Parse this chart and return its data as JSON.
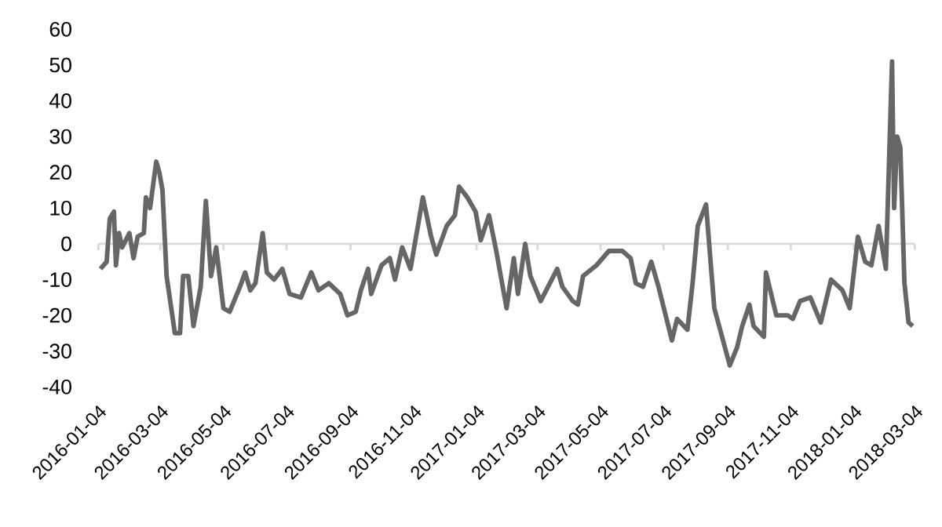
{
  "chart_data": {
    "type": "line",
    "x": [
      "2016-01-06",
      "2016-01-12",
      "2016-01-15",
      "2016-01-19",
      "2016-01-21",
      "2016-01-24",
      "2016-01-27",
      "2016-02-03",
      "2016-02-07",
      "2016-02-11",
      "2016-02-17",
      "2016-02-19",
      "2016-02-23",
      "2016-02-29",
      "2016-03-03",
      "2016-03-06",
      "2016-03-10",
      "2016-03-18",
      "2016-03-23",
      "2016-03-26",
      "2016-03-31",
      "2016-04-05",
      "2016-04-12",
      "2016-04-17",
      "2016-04-22",
      "2016-04-27",
      "2016-05-04",
      "2016-05-10",
      "2016-05-20",
      "2016-05-25",
      "2016-05-30",
      "2016-06-04",
      "2016-06-11",
      "2016-06-15",
      "2016-06-22",
      "2016-06-30",
      "2016-07-07",
      "2016-07-18",
      "2016-07-28",
      "2016-08-04",
      "2016-08-14",
      "2016-08-25",
      "2016-09-01",
      "2016-09-09",
      "2016-09-14",
      "2016-09-21",
      "2016-09-24",
      "2016-10-04",
      "2016-10-12",
      "2016-10-17",
      "2016-10-24",
      "2016-11-01",
      "2016-11-13",
      "2016-11-21",
      "2016-11-26",
      "2016-12-06",
      "2016-12-14",
      "2016-12-18",
      "2016-12-26",
      "2017-01-03",
      "2017-01-08",
      "2017-01-16",
      "2017-01-23",
      "2017-02-02",
      "2017-02-09",
      "2017-02-13",
      "2017-02-20",
      "2017-02-25",
      "2017-03-07",
      "2017-03-23",
      "2017-03-28",
      "2017-04-07",
      "2017-04-12",
      "2017-04-17",
      "2017-04-30",
      "2017-05-12",
      "2017-05-25",
      "2017-06-02",
      "2017-06-07",
      "2017-06-14",
      "2017-06-22",
      "2017-06-29",
      "2017-07-12",
      "2017-07-17",
      "2017-07-27",
      "2017-08-01",
      "2017-08-06",
      "2017-08-14",
      "2017-08-22",
      "2017-09-06",
      "2017-09-13",
      "2017-09-18",
      "2017-09-25",
      "2017-09-29",
      "2017-10-09",
      "2017-10-11",
      "2017-10-21",
      "2017-11-01",
      "2017-11-06",
      "2017-11-13",
      "2017-11-23",
      "2017-12-03",
      "2017-12-13",
      "2017-12-24",
      "2017-12-31",
      "2018-01-08",
      "2018-01-15",
      "2018-01-21",
      "2018-01-28",
      "2018-02-04",
      "2018-02-10",
      "2018-02-12",
      "2018-02-15",
      "2018-02-18",
      "2018-02-22",
      "2018-02-26",
      "2018-03-02"
    ],
    "series": [
      {
        "color": "#666666",
        "values": [
          -7,
          -5,
          7,
          9,
          -6,
          3,
          -1,
          3,
          -4,
          2,
          3,
          13,
          10,
          23,
          20,
          15,
          -9,
          -25,
          -25,
          -9,
          -9,
          -23,
          -12,
          12,
          -9,
          -1,
          -18,
          -19,
          -12,
          -8,
          -13,
          -11,
          3,
          -8,
          -10,
          -7,
          -14,
          -15,
          -8,
          -13,
          -11,
          -14,
          -20,
          -19,
          -13,
          -7,
          -14,
          -6,
          -4,
          -10,
          -1,
          -7,
          13,
          2,
          -3,
          5,
          8,
          16,
          13,
          9,
          1,
          8,
          -2,
          -18,
          -4,
          -14,
          0,
          -9,
          -16,
          -7,
          -12,
          -16,
          -17,
          -9,
          -6,
          -2,
          -2,
          -4,
          -11,
          -12,
          -5,
          -12,
          -27,
          -21,
          -24,
          -11,
          5,
          11,
          -18,
          -34,
          -29,
          -23,
          -17,
          -23,
          -26,
          -8,
          -20,
          -20,
          -21,
          -16,
          -15,
          -22,
          -10,
          -13,
          -18,
          2,
          -5,
          -6,
          5,
          -7,
          51,
          10,
          30,
          27,
          -11,
          -22,
          -23
        ]
      }
    ],
    "xlim": [
      "2016-01-04",
      "2018-03-04"
    ],
    "xticks": [
      "2016-01-04",
      "2016-03-04",
      "2016-05-04",
      "2016-07-04",
      "2016-09-04",
      "2016-11-04",
      "2017-01-04",
      "2017-03-04",
      "2017-05-04",
      "2017-07-04",
      "2017-09-04",
      "2017-11-04",
      "2018-01-04",
      "2018-03-04"
    ],
    "ylim": [
      -40,
      60
    ],
    "yticks": [
      -40,
      -30,
      -20,
      -10,
      0,
      10,
      20,
      30,
      40,
      50,
      60
    ]
  }
}
